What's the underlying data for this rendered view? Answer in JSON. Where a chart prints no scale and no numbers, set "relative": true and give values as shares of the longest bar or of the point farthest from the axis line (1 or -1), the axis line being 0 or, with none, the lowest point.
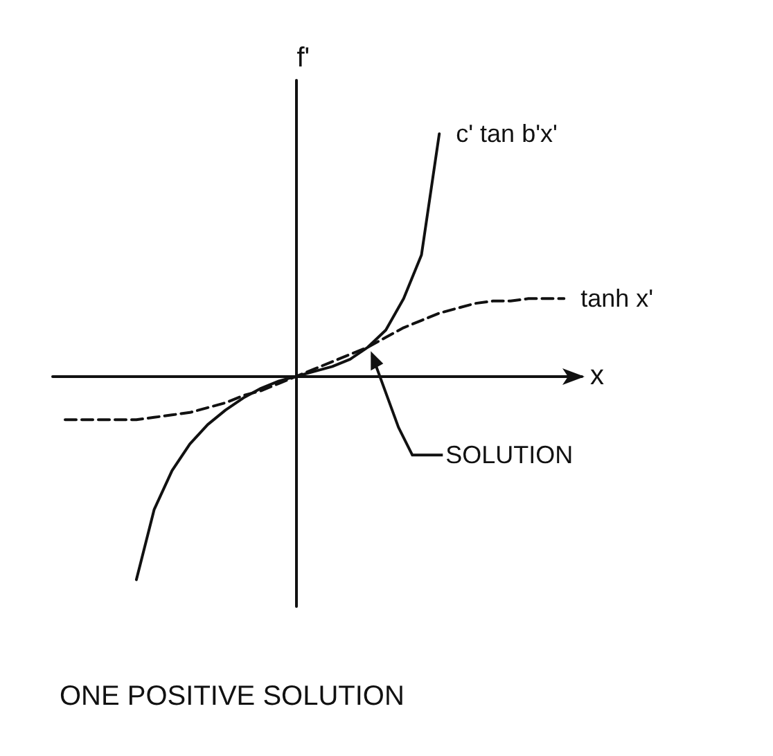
{
  "chart_data": {
    "type": "line",
    "relative": true,
    "title": "ONE POSITIVE SOLUTION",
    "xlabel": "x",
    "ylabel": "f'",
    "categories": [
      null,
      null,
      null,
      null,
      null,
      null,
      null,
      null,
      null,
      null,
      null,
      null,
      null,
      null,
      null,
      null,
      null,
      null,
      null,
      null,
      null,
      null,
      null,
      null,
      null,
      null,
      null,
      null,
      null
    ],
    "series": [
      {
        "name": "c' tan b'x'",
        "color": "#111111",
        "line_style": "solid",
        "values": [
          null,
          null,
          null,
          null,
          -0.84,
          -0.55,
          -0.39,
          -0.28,
          -0.2,
          -0.14,
          -0.09,
          -0.05,
          -0.02,
          0,
          0.02,
          0.04,
          0.07,
          0.12,
          0.19,
          0.32,
          0.5,
          1,
          null,
          null,
          null,
          null,
          null,
          null,
          null
        ]
      },
      {
        "name": "tanh x'",
        "color": "#111111",
        "line_style": "dashed",
        "values": [
          -0.18,
          -0.18,
          -0.18,
          -0.18,
          -0.18,
          -0.17,
          -0.16,
          -0.15,
          -0.13,
          -0.11,
          -0.08,
          -0.06,
          -0.03,
          0,
          0.03,
          0.06,
          0.09,
          0.12,
          0.16,
          0.2,
          0.23,
          0.26,
          0.28,
          0.3,
          0.31,
          0.31,
          0.32,
          0.32,
          0.32
        ]
      }
    ],
    "annotations": [
      "SOLUTION"
    ],
    "grid": false,
    "legend": false,
    "marker": "none"
  }
}
